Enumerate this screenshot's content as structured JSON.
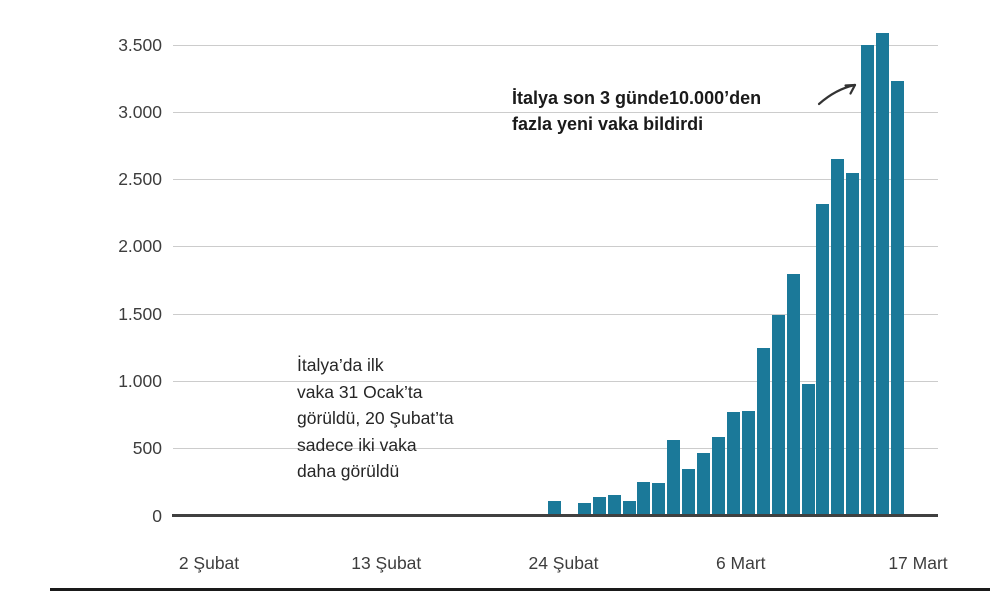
{
  "chart_data": {
    "type": "bar",
    "title": "",
    "xlabel": "",
    "ylabel": "",
    "categories": [
      "23 Şubat",
      "24 Şubat",
      "25 Şubat",
      "26 Şubat",
      "27 Şubat",
      "28 Şubat",
      "29 Şubat",
      "1 Mart",
      "2 Mart",
      "3 Mart",
      "4 Mart",
      "5 Mart",
      "6 Mart",
      "7 Mart",
      "8 Mart",
      "9 Mart",
      "10 Mart",
      "11 Mart",
      "12 Mart",
      "13 Mart",
      "14 Mart",
      "15 Mart",
      "16 Mart",
      "17 Mart"
    ],
    "values": [
      110,
      0,
      90,
      140,
      150,
      110,
      250,
      238,
      561,
      342,
      466,
      587,
      769,
      778,
      1247,
      1492,
      1797,
      977,
      2313,
      2651,
      2547,
      3497,
      3590,
      3233
    ],
    "ylim": [
      0,
      3500
    ],
    "y_ticks": [
      {
        "label": "0",
        "value": 0
      },
      {
        "label": "500",
        "value": 500
      },
      {
        "label": "1.000",
        "value": 1000
      },
      {
        "label": "1.500",
        "value": 1500
      },
      {
        "label": "2.000",
        "value": 2000
      },
      {
        "label": "2.500",
        "value": 2500
      },
      {
        "label": "3.000",
        "value": 3000
      },
      {
        "label": "3.500",
        "value": 3500
      }
    ],
    "x_tick_labels": [
      "2 Şubat",
      "13 Şubat",
      "24 Şubat",
      "6 Mart",
      "17 Mart"
    ],
    "grid": "horizontal",
    "legend": "none",
    "bar_color": "#1b7999",
    "gridline_color": "#cccccc",
    "axis_color": "#404040",
    "annotations": [
      {
        "id": "first-case",
        "bold": false,
        "lines": [
          "İtalya’da ilk",
          "vaka 31 Ocak’ta",
          "görüldü, 20 Şubat’ta",
          "sadece iki vaka",
          "daha görüldü"
        ]
      },
      {
        "id": "recent-surge",
        "bold": true,
        "lines": [
          "İtalya son 3 günde10.000’den",
          "fazla yeni vaka bildirdi"
        ]
      }
    ]
  }
}
